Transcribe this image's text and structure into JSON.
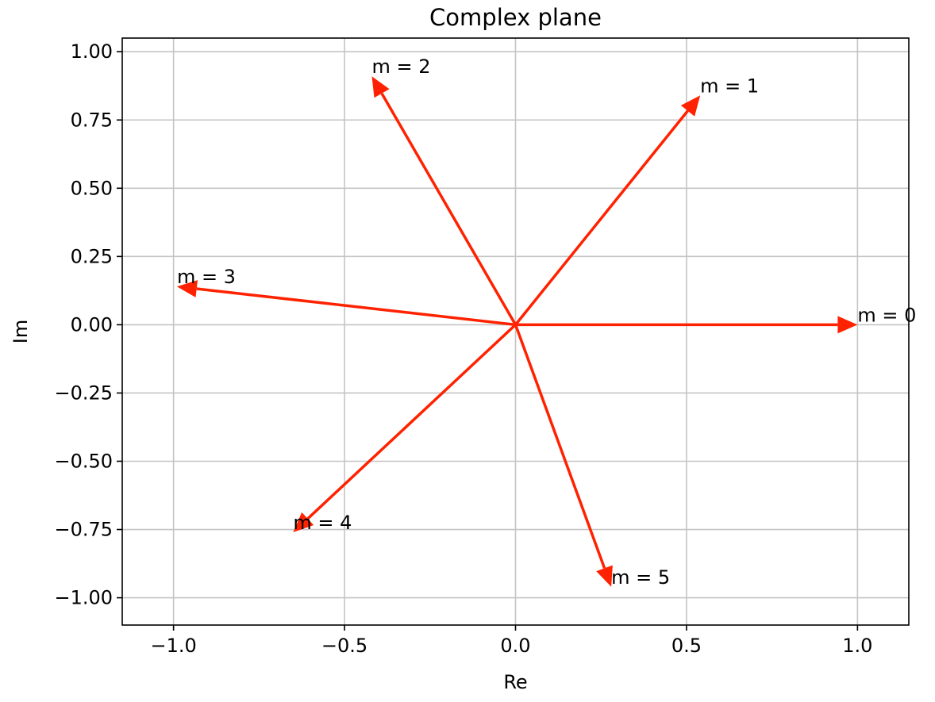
{
  "chart_data": {
    "type": "quiver",
    "title": "Complex plane",
    "xlabel": "Re",
    "ylabel": "Im",
    "xlim": [
      -1.15,
      1.15
    ],
    "ylim": [
      -1.1,
      1.05
    ],
    "xticks": [
      -1.0,
      -0.5,
      0.0,
      0.5,
      1.0
    ],
    "xtick_labels": [
      "−1.0",
      "−0.5",
      "0.0",
      "0.5",
      "1.0"
    ],
    "yticks": [
      1.0,
      0.75,
      0.5,
      0.25,
      0.0,
      -0.25,
      -0.5,
      -0.75,
      -1.0
    ],
    "ytick_labels": [
      "1.00",
      "0.75",
      "0.50",
      "0.25",
      "0.00",
      "−0.25",
      "−0.50",
      "−0.75",
      "−1.00"
    ],
    "grid": true,
    "arrow_color": "#ff2200",
    "vectors": [
      {
        "label": "m = 0",
        "x": 1.0,
        "y": 0.0
      },
      {
        "label": "m = 1",
        "x": 0.54,
        "y": 0.84
      },
      {
        "label": "m = 2",
        "x": -0.42,
        "y": 0.91
      },
      {
        "label": "m = 3",
        "x": -0.99,
        "y": 0.14
      },
      {
        "label": "m = 4",
        "x": -0.65,
        "y": -0.76
      },
      {
        "label": "m = 5",
        "x": 0.28,
        "y": -0.96
      }
    ]
  }
}
